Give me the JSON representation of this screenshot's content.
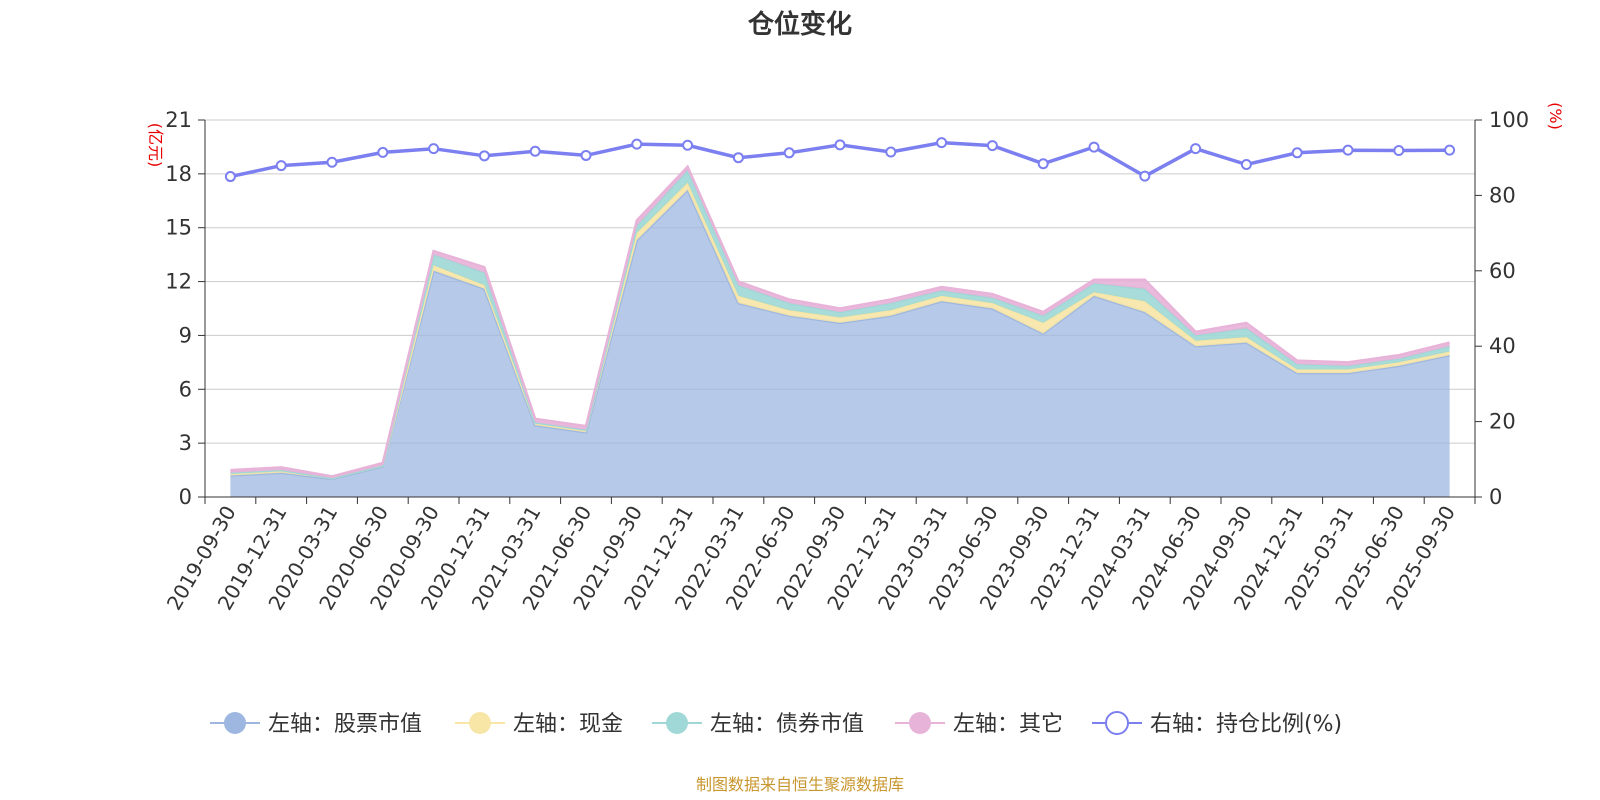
{
  "chart_data": {
    "type": "area",
    "title": "仓位变化",
    "left_axis_unit": "(亿元)",
    "right_axis_unit": "(%)",
    "ylim_left": [
      0,
      21
    ],
    "yticks_left": [
      0,
      3,
      6,
      9,
      12,
      15,
      18,
      21
    ],
    "ylim_right": [
      0,
      100
    ],
    "yticks_right": [
      0,
      20,
      40,
      60,
      80,
      100
    ],
    "categories": [
      "2019-09-30",
      "2019-12-31",
      "2020-03-31",
      "2020-06-30",
      "2020-09-30",
      "2020-12-31",
      "2021-03-31",
      "2021-06-30",
      "2021-09-30",
      "2021-12-31",
      "2022-03-31",
      "2022-06-30",
      "2022-09-30",
      "2022-12-31",
      "2023-03-31",
      "2023-06-30",
      "2023-09-30",
      "2023-12-31",
      "2024-03-31",
      "2024-06-30",
      "2024-09-30",
      "2024-12-31",
      "2025-03-31",
      "2025-06-30",
      "2025-09-30"
    ],
    "series": [
      {
        "name": "左轴：股票市值",
        "axis": "left",
        "color": "#9db7e0",
        "values": [
          1.2,
          1.35,
          1.0,
          1.7,
          12.6,
          11.6,
          4.0,
          3.6,
          14.3,
          17.1,
          10.8,
          10.1,
          9.7,
          10.1,
          10.9,
          10.5,
          9.1,
          11.2,
          10.3,
          8.4,
          8.6,
          6.9,
          6.9,
          7.3,
          7.9
        ]
      },
      {
        "name": "左轴：现金",
        "axis": "left",
        "color": "#f7e6a6",
        "values": [
          0.15,
          0.15,
          0.05,
          0.05,
          0.3,
          0.2,
          0.15,
          0.15,
          0.4,
          0.4,
          0.4,
          0.3,
          0.3,
          0.3,
          0.3,
          0.3,
          0.6,
          0.2,
          0.6,
          0.3,
          0.3,
          0.2,
          0.2,
          0.2,
          0.2
        ]
      },
      {
        "name": "左轴：债券市值",
        "axis": "left",
        "color": "#9fd8d6",
        "values": [
          0.0,
          0.0,
          0.0,
          0.0,
          0.6,
          0.7,
          0.0,
          0.0,
          0.4,
          0.7,
          0.6,
          0.4,
          0.3,
          0.4,
          0.3,
          0.3,
          0.4,
          0.5,
          0.7,
          0.3,
          0.5,
          0.3,
          0.2,
          0.2,
          0.3
        ]
      },
      {
        "name": "左轴：其它",
        "axis": "left",
        "color": "#e8b3d8",
        "values": [
          0.15,
          0.15,
          0.1,
          0.15,
          0.2,
          0.3,
          0.2,
          0.2,
          0.3,
          0.2,
          0.2,
          0.2,
          0.2,
          0.2,
          0.2,
          0.2,
          0.2,
          0.2,
          0.5,
          0.2,
          0.3,
          0.2,
          0.2,
          0.2,
          0.2
        ]
      },
      {
        "name": "右轴：持仓比例(%)",
        "axis": "right",
        "type": "line",
        "color": "#7b7ff0",
        "values": [
          85.0,
          87.9,
          88.8,
          91.4,
          92.4,
          90.5,
          91.7,
          90.6,
          93.6,
          93.3,
          90.0,
          91.3,
          93.4,
          91.5,
          94.0,
          93.2,
          88.4,
          92.8,
          85.1,
          92.4,
          88.2,
          91.3,
          92.0,
          91.9,
          92.0
        ]
      }
    ],
    "grid": true,
    "legend_position": "bottom-center"
  },
  "source_text": "制图数据来自恒生聚源数据库"
}
